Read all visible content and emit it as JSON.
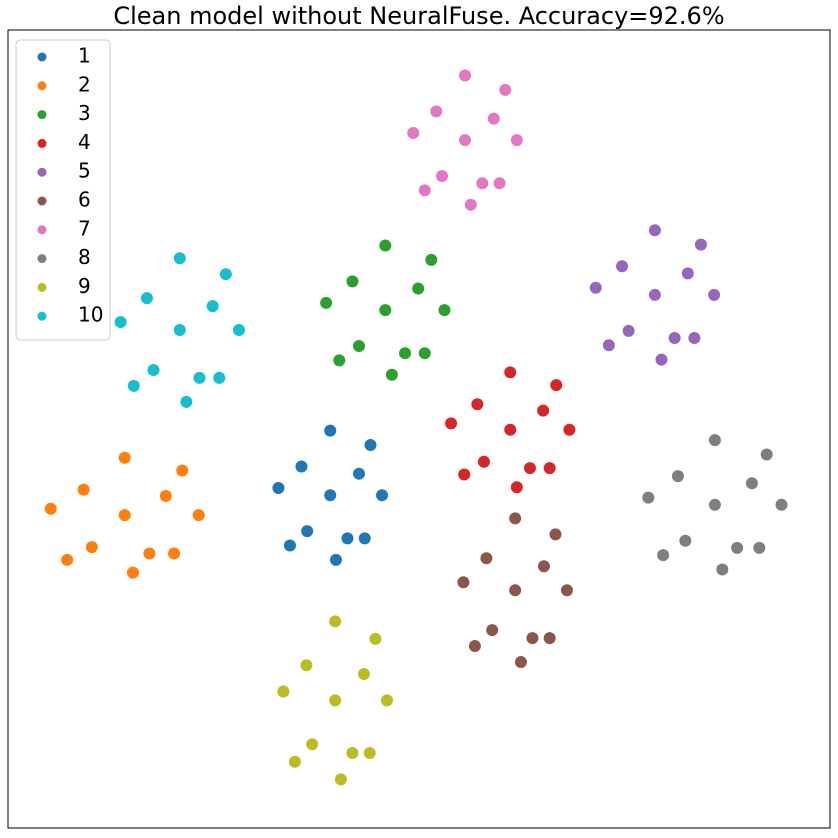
{
  "chart_data": {
    "type": "scatter",
    "title": "Clean model without NeuralFuse. Accuracy=92.6%",
    "xlim": [
      0,
      100
    ],
    "ylim": [
      0,
      100
    ],
    "legend": "upper left",
    "series": [
      {
        "name": "1",
        "color": "#1f77b4",
        "x": [
          39.2,
          42.7,
          35.7,
          41.3,
          36.4,
          45.5,
          32.9,
          39.2,
          39.9,
          44.1,
          34.3,
          43.4
        ],
        "y": [
          41.7,
          44.4,
          45.3,
          36.3,
          37.2,
          41.7,
          42.6,
          49.8,
          33.6,
          48.0,
          35.4,
          36.3
        ]
      },
      {
        "name": "2",
        "color": "#ff7f0e",
        "x": [
          14.2,
          19.2,
          9.2,
          17.2,
          10.2,
          23.2,
          5.2,
          14.2,
          15.2,
          21.2,
          7.2,
          20.2
        ],
        "y": [
          39.2,
          41.6,
          42.4,
          34.4,
          35.2,
          39.2,
          40.0,
          46.4,
          32.0,
          44.8,
          33.6,
          34.4
        ]
      },
      {
        "name": "3",
        "color": "#2ca02c",
        "x": [
          45.9,
          49.9,
          41.9,
          48.3,
          42.7,
          53.1,
          38.7,
          45.9,
          46.7,
          51.5,
          40.3,
          50.7
        ],
        "y": [
          64.9,
          67.6,
          68.5,
          59.5,
          60.4,
          64.9,
          65.8,
          73.0,
          56.8,
          71.2,
          58.6,
          59.5
        ]
      },
      {
        "name": "4",
        "color": "#d62728",
        "x": [
          61.1,
          65.1,
          57.1,
          63.5,
          57.9,
          68.3,
          53.9,
          61.1,
          61.9,
          66.7,
          55.5,
          65.9
        ],
        "y": [
          49.9,
          52.3,
          53.1,
          45.1,
          45.9,
          49.9,
          50.7,
          57.1,
          42.7,
          55.5,
          44.3,
          45.1
        ]
      },
      {
        "name": "5",
        "color": "#9467bd",
        "x": [
          78.7,
          82.7,
          74.7,
          81.1,
          75.5,
          85.9,
          71.5,
          78.7,
          79.5,
          84.3,
          73.1,
          83.5
        ],
        "y": [
          66.8,
          69.5,
          70.4,
          61.4,
          62.3,
          66.8,
          67.7,
          74.9,
          58.7,
          73.1,
          60.5,
          61.4
        ]
      },
      {
        "name": "6",
        "color": "#8c564b",
        "x": [
          61.7,
          65.2,
          58.2,
          63.8,
          58.9,
          68.0,
          55.4,
          61.7,
          62.4,
          66.6,
          56.8,
          65.9
        ],
        "y": [
          29.8,
          32.8,
          33.8,
          23.8,
          24.8,
          29.8,
          30.8,
          38.8,
          20.8,
          36.8,
          22.8,
          23.8
        ]
      },
      {
        "name": "7",
        "color": "#e377c2",
        "x": [
          55.6,
          59.1,
          52.1,
          57.7,
          52.8,
          61.9,
          49.3,
          55.6,
          56.3,
          60.5,
          50.7,
          59.8
        ],
        "y": [
          86.2,
          88.9,
          89.8,
          80.8,
          81.7,
          86.2,
          87.1,
          94.3,
          78.1,
          92.5,
          79.9,
          80.8
        ]
      },
      {
        "name": "8",
        "color": "#7f7f7f",
        "x": [
          86.0,
          90.5,
          81.5,
          88.7,
          82.4,
          94.1,
          77.9,
          86.0,
          86.9,
          92.3,
          79.7,
          91.4
        ],
        "y": [
          40.5,
          43.2,
          44.1,
          35.1,
          36.0,
          40.5,
          41.4,
          48.6,
          32.4,
          46.8,
          34.2,
          35.1
        ]
      },
      {
        "name": "9",
        "color": "#bcbd22",
        "x": [
          39.8,
          43.3,
          36.3,
          41.9,
          37.0,
          46.1,
          33.5,
          39.8,
          40.5,
          44.7,
          34.9,
          44.0
        ],
        "y": [
          16.0,
          19.3,
          20.4,
          9.4,
          10.5,
          16.0,
          17.1,
          25.9,
          6.1,
          23.7,
          8.3,
          9.4
        ]
      },
      {
        "name": "10",
        "color": "#17becf",
        "x": [
          20.9,
          24.9,
          16.9,
          23.3,
          17.7,
          28.1,
          13.7,
          20.9,
          21.7,
          26.5,
          15.3,
          25.7
        ],
        "y": [
          62.4,
          65.4,
          66.4,
          56.4,
          57.4,
          62.4,
          63.4,
          71.4,
          53.4,
          69.4,
          55.4,
          56.4
        ]
      }
    ]
  }
}
